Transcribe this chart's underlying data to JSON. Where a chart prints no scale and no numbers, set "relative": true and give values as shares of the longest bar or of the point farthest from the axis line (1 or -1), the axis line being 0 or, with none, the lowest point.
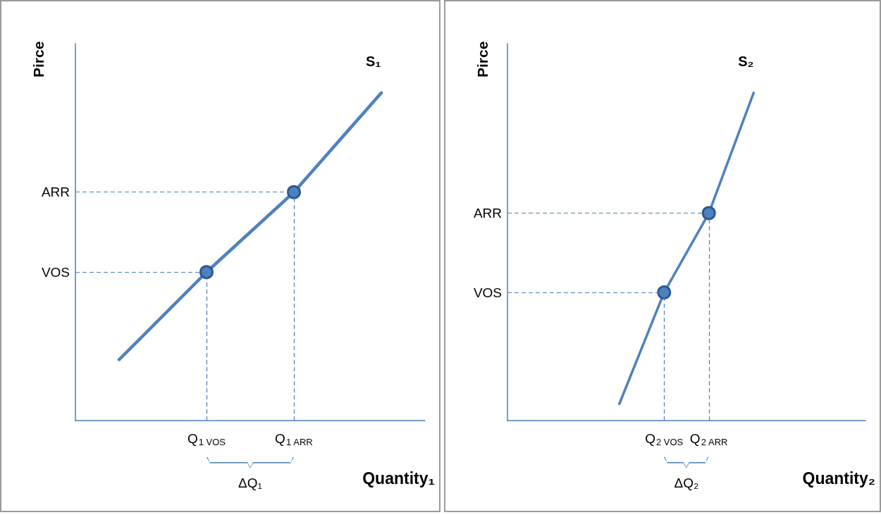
{
  "chart_data": [
    {
      "type": "line",
      "xlabel": "Quantity₁",
      "ylabel": "Pirce",
      "relative": true,
      "legend": false,
      "tick_labels": "x",
      "marker": "circle",
      "categories": [
        null,
        "Q$_{1 VOS}$",
        "Q$_{1 ARR}$",
        null
      ],
      "series": [
        {
          "name": "S₁",
          "color": "#4f81bd",
          "values": [
            0.186,
            0.453,
            0.697,
            1
          ]
        }
      ],
      "ref_lines": [
        {
          "axis": "y",
          "value": 0.697,
          "label": "ARR",
          "line_style": "dashed"
        },
        {
          "axis": "y",
          "value": 0.453,
          "label": "VOS",
          "line_style": "dashed"
        },
        {
          "axis": "x",
          "value": "Q$_{1 VOS}$",
          "line_style": "dashed"
        },
        {
          "axis": "x",
          "value": "Q$_{1 ARR}$",
          "line_style": "dashed"
        }
      ],
      "annotations": [
        "ΔQ₁"
      ]
    },
    {
      "type": "line",
      "xlabel": "Quantity₂",
      "ylabel": "Pirce",
      "relative": true,
      "legend": false,
      "tick_labels": "x",
      "marker": "circle",
      "categories": [
        null,
        null,
        null,
        "Q$_{2 VOS}$",
        "Q$_{2 ARR}$",
        null,
        null,
        null
      ],
      "series": [
        {
          "name": "S₂",
          "color": "#4f81bd",
          "values": [
            null,
            null,
            0.051,
            0.391,
            0.633,
            1,
            null,
            null
          ]
        }
      ],
      "ref_lines": [
        {
          "axis": "y",
          "value": 0.633,
          "label": "ARR",
          "line_style": "dashed"
        },
        {
          "axis": "y",
          "value": 0.391,
          "label": "VOS",
          "line_style": "dashed"
        },
        {
          "axis": "x",
          "value": "Q$_{2 VOS}$",
          "line_style": "dashed"
        },
        {
          "axis": "x",
          "value": "Q$_{2 ARR}$",
          "line_style": "dashed"
        }
      ],
      "annotations": [
        "ΔQ₂"
      ]
    }
  ]
}
